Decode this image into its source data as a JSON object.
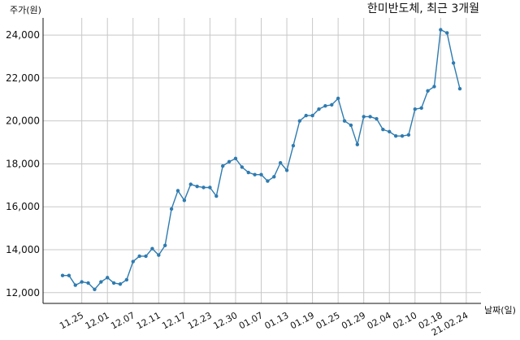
{
  "chart_data": {
    "type": "line",
    "title": "한미반도체, 최근 3개월",
    "ylabel": "주가(원)",
    "xlabel": "날짜(일)",
    "ylim": [
      11500,
      24800
    ],
    "yticks": [
      12000,
      14000,
      16000,
      18000,
      20000,
      22000,
      24000
    ],
    "ytick_labels": [
      "12,000",
      "14,000",
      "16,000",
      "18,000",
      "20,000",
      "22,000",
      "24,000"
    ],
    "grid": true,
    "line_color": "#2e7bb0",
    "x_labels": [
      {
        "label": "11.25",
        "index": 3
      },
      {
        "label": "12.01",
        "index": 7
      },
      {
        "label": "12.07",
        "index": 11
      },
      {
        "label": "12.11",
        "index": 15
      },
      {
        "label": "12.17",
        "index": 19
      },
      {
        "label": "12.23",
        "index": 23
      },
      {
        "label": "12.30",
        "index": 27
      },
      {
        "label": "01.07",
        "index": 31
      },
      {
        "label": "01.13",
        "index": 35
      },
      {
        "label": "01.19",
        "index": 39
      },
      {
        "label": "01.25",
        "index": 43
      },
      {
        "label": "01.29",
        "index": 47
      },
      {
        "label": "02.04",
        "index": 51
      },
      {
        "label": "02.10",
        "index": 55
      },
      {
        "label": "02.18",
        "index": 59
      },
      {
        "label": "21.02.24",
        "index": 63
      }
    ],
    "series": [
      {
        "values": [
          12800,
          12800,
          12350,
          12500,
          12450,
          12150,
          12500,
          12700,
          12450,
          12400,
          12600,
          13450,
          13700,
          13700,
          14050,
          13750,
          14200,
          15900,
          16750,
          16300,
          17050,
          16950,
          16900,
          16900,
          16500,
          17900,
          18100,
          18250,
          17850,
          17600,
          17500,
          17500,
          17200,
          17400,
          18050,
          17700,
          18850,
          20000,
          20250,
          20250,
          20550,
          20700,
          20750,
          21050,
          20000,
          19800,
          18900,
          20200,
          20200,
          20100,
          19600,
          19500,
          19300,
          19300,
          19350,
          20550,
          20600,
          21400,
          21600,
          24250,
          24100,
          22700,
          21500
        ]
      }
    ]
  }
}
